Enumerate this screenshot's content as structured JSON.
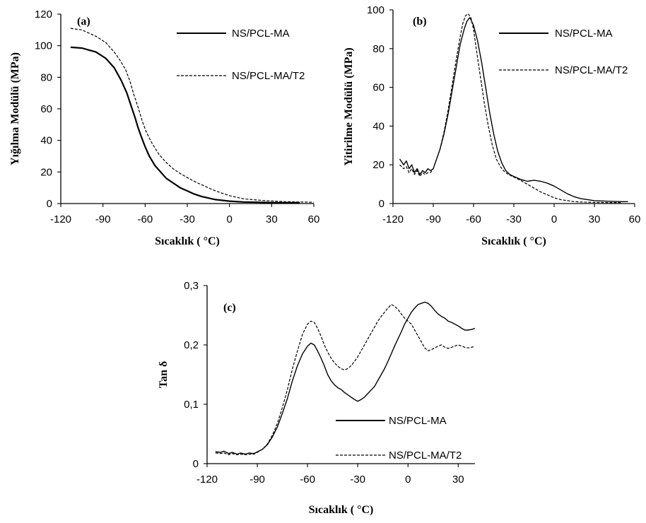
{
  "chart_data": [
    {
      "panel": "(a)",
      "type": "line",
      "xlabel": "Sıcaklık ( °C)",
      "ylabel": "Yığılma Modülü (MPa)",
      "xlim": [
        -120,
        60
      ],
      "ylim": [
        0,
        120
      ],
      "xticks": [
        "-120",
        "-90",
        "-60",
        "-30",
        "0",
        "30",
        "60"
      ],
      "yticks": [
        "0",
        "20",
        "40",
        "60",
        "80",
        "100",
        "120"
      ],
      "grid": false,
      "legend_position": "top-right",
      "series": [
        {
          "name": "NS/PCL-MA",
          "style": "solid",
          "x": [
            -113,
            -105,
            -95,
            -88,
            -82,
            -77,
            -73,
            -70,
            -67,
            -65,
            -63,
            -60,
            -57,
            -53,
            -49,
            -45,
            -40,
            -35,
            -30,
            -25,
            -20,
            -15,
            -10,
            -5,
            0,
            10,
            20,
            30,
            40,
            50
          ],
          "y": [
            99,
            98.5,
            96,
            92,
            86,
            78,
            70,
            62,
            54,
            48,
            43,
            36,
            30,
            24,
            20,
            16,
            13,
            10,
            8,
            6,
            4.5,
            3.5,
            2.5,
            2,
            1.5,
            1,
            0.8,
            0.6,
            0.5,
            0.5
          ]
        },
        {
          "name": "NS/PCL-MA/T2",
          "style": "dashed",
          "x": [
            -113,
            -105,
            -95,
            -88,
            -82,
            -78,
            -74,
            -71,
            -68,
            -65,
            -62,
            -59,
            -55,
            -50,
            -45,
            -40,
            -35,
            -30,
            -25,
            -20,
            -15,
            -10,
            -5,
            0,
            5,
            10,
            20,
            30,
            40,
            50,
            60
          ],
          "y": [
            111,
            110,
            106,
            102,
            96,
            91,
            85,
            78,
            69,
            61,
            52,
            45,
            38,
            31,
            26,
            22,
            19,
            16.5,
            14,
            12,
            10,
            8,
            6.5,
            5,
            4,
            3,
            2.2,
            1.6,
            1.2,
            1,
            0.8
          ]
        }
      ]
    },
    {
      "panel": "(b)",
      "type": "line",
      "xlabel": "Sıcaklık ( °C)",
      "ylabel": "Yitirilme Modülü (MPa)",
      "xlim": [
        -120,
        60
      ],
      "ylim": [
        0,
        100
      ],
      "xticks": [
        "-120",
        "-90",
        "-60",
        "-30",
        "0",
        "30",
        "60"
      ],
      "yticks": [
        "0",
        "20",
        "40",
        "60",
        "80",
        "100"
      ],
      "grid": false,
      "legend_position": "top-right",
      "series": [
        {
          "name": "NS/PCL-MA",
          "style": "solid",
          "x": [
            -115,
            -112,
            -110,
            -108,
            -106,
            -104,
            -102,
            -100,
            -98,
            -96,
            -94,
            -92,
            -90,
            -88,
            -85,
            -82,
            -79,
            -76,
            -73,
            -70,
            -67,
            -65,
            -63,
            -62,
            -60,
            -57,
            -54,
            -51,
            -48,
            -45,
            -42,
            -39,
            -36,
            -33,
            -30,
            -25,
            -20,
            -15,
            -10,
            -5,
            0,
            5,
            10,
            15,
            20,
            30,
            40,
            50,
            55
          ],
          "y": [
            23,
            20,
            22,
            18,
            20,
            16,
            18,
            15,
            17,
            16,
            18,
            17,
            18,
            22,
            28,
            36,
            46,
            58,
            70,
            82,
            90,
            94,
            96,
            95,
            92,
            84,
            73,
            60,
            47,
            36,
            27,
            21,
            17,
            15,
            14,
            12.5,
            11.5,
            12,
            11.5,
            10.5,
            9,
            7,
            5,
            3.5,
            2.5,
            1.5,
            1.2,
            1,
            1
          ]
        },
        {
          "name": "NS/PCL-MA/T2",
          "style": "dashed",
          "x": [
            -115,
            -112,
            -110,
            -108,
            -106,
            -104,
            -102,
            -100,
            -98,
            -96,
            -94,
            -92,
            -90,
            -88,
            -85,
            -82,
            -79,
            -76,
            -73,
            -70,
            -68,
            -66,
            -64,
            -62,
            -60,
            -58,
            -55,
            -52,
            -49,
            -46,
            -43,
            -40,
            -37,
            -34,
            -31,
            -28,
            -25,
            -20,
            -15,
            -10,
            -5,
            0,
            5,
            10,
            15,
            20,
            30,
            40,
            50
          ],
          "y": [
            20,
            18,
            19,
            16,
            18,
            15,
            17,
            14,
            16,
            15,
            16,
            16,
            18,
            22,
            28,
            37,
            48,
            61,
            74,
            86,
            93,
            97,
            98,
            96,
            90,
            80,
            66,
            52,
            40,
            30,
            23,
            19,
            16.5,
            15,
            14,
            13,
            12,
            10,
            8,
            6,
            4.5,
            3,
            2,
            1.5,
            1,
            0.8,
            0.6,
            0.5,
            0.5
          ]
        }
      ]
    },
    {
      "panel": "(c)",
      "type": "line",
      "xlabel": "Sıcaklık ( °C)",
      "ylabel": "Tan δ",
      "xlim": [
        -120,
        40
      ],
      "ylim": [
        0,
        0.3
      ],
      "xticks": [
        "-120",
        "-90",
        "-60",
        "-30",
        "0",
        "30"
      ],
      "yticks": [
        "0",
        "0,1",
        "0,2",
        "0,3"
      ],
      "grid": false,
      "legend_position": "bottom-right",
      "series": [
        {
          "name": "NS/PCL-MA",
          "style": "solid",
          "x": [
            -115,
            -112,
            -110,
            -107,
            -105,
            -102,
            -100,
            -97,
            -95,
            -92,
            -90,
            -87,
            -84,
            -81,
            -78,
            -75,
            -72,
            -69,
            -66,
            -63,
            -60,
            -58,
            -56,
            -54,
            -52,
            -50,
            -48,
            -46,
            -44,
            -42,
            -40,
            -38,
            -36,
            -34,
            -32,
            -30,
            -28,
            -26,
            -24,
            -22,
            -20,
            -18,
            -16,
            -14,
            -12,
            -10,
            -8,
            -6,
            -4,
            -2,
            0,
            2,
            4,
            6,
            8,
            10,
            12,
            14,
            16,
            18,
            20,
            22,
            24,
            26,
            28,
            30,
            32,
            34,
            36,
            38,
            40
          ],
          "y": [
            0.02,
            0.019,
            0.021,
            0.017,
            0.019,
            0.016,
            0.018,
            0.016,
            0.018,
            0.017,
            0.02,
            0.024,
            0.032,
            0.045,
            0.062,
            0.085,
            0.11,
            0.14,
            0.165,
            0.185,
            0.198,
            0.203,
            0.2,
            0.19,
            0.178,
            0.165,
            0.15,
            0.14,
            0.133,
            0.128,
            0.125,
            0.12,
            0.116,
            0.112,
            0.108,
            0.105,
            0.108,
            0.112,
            0.118,
            0.124,
            0.13,
            0.14,
            0.15,
            0.16,
            0.172,
            0.185,
            0.198,
            0.21,
            0.222,
            0.235,
            0.245,
            0.255,
            0.262,
            0.268,
            0.27,
            0.272,
            0.27,
            0.265,
            0.258,
            0.252,
            0.248,
            0.245,
            0.24,
            0.238,
            0.235,
            0.232,
            0.228,
            0.225,
            0.225,
            0.226,
            0.228
          ]
        },
        {
          "name": "NS/PCL-MA/T2",
          "style": "dashed",
          "x": [
            -115,
            -112,
            -110,
            -107,
            -105,
            -102,
            -100,
            -97,
            -95,
            -92,
            -90,
            -87,
            -84,
            -81,
            -78,
            -75,
            -72,
            -69,
            -66,
            -63,
            -60,
            -58,
            -56,
            -54,
            -52,
            -50,
            -48,
            -46,
            -44,
            -42,
            -40,
            -38,
            -36,
            -34,
            -32,
            -30,
            -28,
            -26,
            -24,
            -22,
            -20,
            -18,
            -16,
            -14,
            -12,
            -10,
            -8,
            -6,
            -4,
            -2,
            0,
            2,
            4,
            6,
            8,
            10,
            12,
            14,
            16,
            18,
            20,
            22,
            24,
            26,
            28,
            30,
            32,
            34,
            36,
            38,
            40
          ],
          "y": [
            0.018,
            0.017,
            0.018,
            0.015,
            0.017,
            0.015,
            0.016,
            0.015,
            0.016,
            0.016,
            0.019,
            0.024,
            0.033,
            0.048,
            0.068,
            0.095,
            0.125,
            0.16,
            0.19,
            0.218,
            0.235,
            0.24,
            0.238,
            0.228,
            0.215,
            0.2,
            0.188,
            0.178,
            0.17,
            0.164,
            0.16,
            0.158,
            0.16,
            0.165,
            0.172,
            0.18,
            0.19,
            0.2,
            0.21,
            0.22,
            0.23,
            0.24,
            0.248,
            0.255,
            0.262,
            0.268,
            0.265,
            0.26,
            0.252,
            0.245,
            0.24,
            0.235,
            0.225,
            0.215,
            0.205,
            0.195,
            0.19,
            0.192,
            0.195,
            0.198,
            0.2,
            0.196,
            0.194,
            0.196,
            0.198,
            0.2,
            0.198,
            0.196,
            0.195,
            0.196,
            0.198
          ]
        }
      ]
    }
  ]
}
